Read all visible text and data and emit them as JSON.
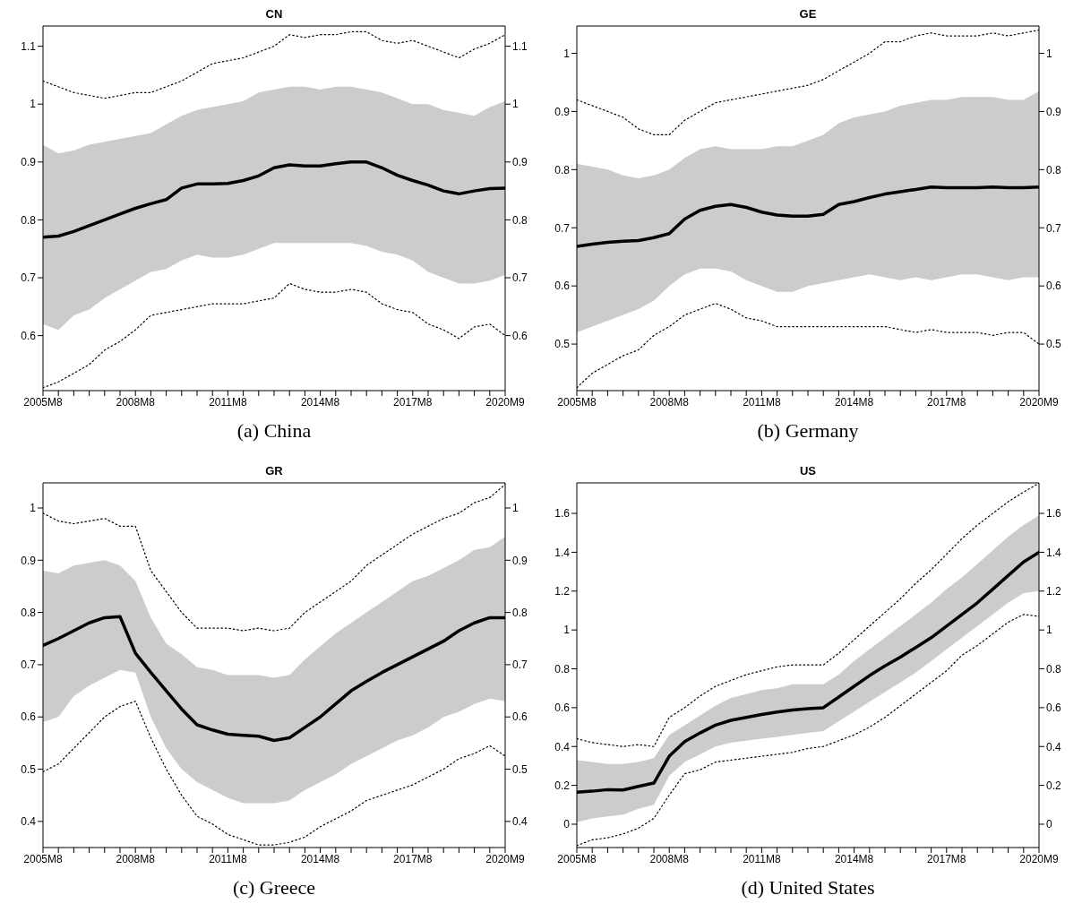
{
  "chart_data": [
    {
      "type": "line",
      "title": "CN",
      "annotations": [
        "(a) China"
      ],
      "marker": "none",
      "line_style": "solid",
      "categories": [
        "2005M8",
        null,
        null,
        null,
        null,
        null,
        "2008M8",
        null,
        null,
        null,
        null,
        null,
        "2011M8",
        null,
        null,
        null,
        null,
        null,
        "2014M8",
        null,
        null,
        null,
        null,
        null,
        "2017M8",
        null,
        null,
        null,
        null,
        null,
        "2020M9"
      ],
      "ylim": [
        0.505,
        1.135
      ],
      "yticks": [
        0.6,
        0.7,
        0.8,
        0.9,
        1,
        1.1
      ],
      "y2lim": [
        0.505,
        1.135
      ],
      "y2ticks": [
        0.6,
        0.7,
        0.8,
        0.9,
        1,
        1.1
      ],
      "series": [
        {
          "color": "#000000",
          "values": [
            0.77,
            0.772,
            0.78,
            0.79,
            0.8,
            0.81,
            0.82,
            0.828,
            0.835,
            0.855,
            0.862,
            0.862,
            0.863,
            0.868,
            0.876,
            0.89,
            0.895,
            0.893,
            0.893,
            0.897,
            0.9,
            0.9,
            0.89,
            0.877,
            0.868,
            0.86,
            0.85,
            0.845,
            0.85,
            0.854,
            0.855
          ],
          "lower": [
            0.62,
            0.61,
            0.635,
            0.645,
            0.665,
            0.68,
            0.695,
            0.71,
            0.715,
            0.73,
            0.74,
            0.735,
            0.735,
            0.74,
            0.75,
            0.76,
            0.76,
            0.76,
            0.76,
            0.76,
            0.76,
            0.755,
            0.745,
            0.74,
            0.73,
            0.71,
            0.7,
            0.69,
            0.69,
            0.695,
            0.705
          ],
          "upper": [
            0.93,
            0.915,
            0.92,
            0.93,
            0.935,
            0.94,
            0.945,
            0.95,
            0.965,
            0.98,
            0.99,
            0.995,
            1.0,
            1.005,
            1.02,
            1.025,
            1.03,
            1.03,
            1.025,
            1.03,
            1.03,
            1.025,
            1.02,
            1.01,
            1.0,
            1.0,
            0.99,
            0.985,
            0.98,
            0.995,
            1.005
          ]
        },
        {
          "color": "#000000",
          "line_style": "dotted",
          "values": [
            1.04,
            1.03,
            1.02,
            1.015,
            1.01,
            1.015,
            1.02,
            1.02,
            1.03,
            1.04,
            1.055,
            1.07,
            1.075,
            1.08,
            1.09,
            1.1,
            1.12,
            1.115,
            1.12,
            1.12,
            1.125,
            1.125,
            1.11,
            1.105,
            1.11,
            1.1,
            1.09,
            1.08,
            1.095,
            1.105,
            1.12
          ]
        },
        {
          "color": "#000000",
          "line_style": "dotted",
          "values": [
            0.51,
            0.52,
            0.535,
            0.55,
            0.575,
            0.59,
            0.61,
            0.635,
            0.64,
            0.645,
            0.65,
            0.655,
            0.655,
            0.655,
            0.66,
            0.665,
            0.69,
            0.68,
            0.675,
            0.675,
            0.68,
            0.675,
            0.655,
            0.645,
            0.64,
            0.62,
            0.61,
            0.595,
            0.615,
            0.62,
            0.6
          ]
        }
      ]
    },
    {
      "type": "line",
      "title": "GE",
      "annotations": [
        "(b) Germany"
      ],
      "marker": "none",
      "line_style": "solid",
      "categories": [
        "2005M8",
        null,
        null,
        null,
        null,
        null,
        "2008M8",
        null,
        null,
        null,
        null,
        null,
        "2011M8",
        null,
        null,
        null,
        null,
        null,
        "2014M8",
        null,
        null,
        null,
        null,
        null,
        "2017M8",
        null,
        null,
        null,
        null,
        null,
        "2020M9"
      ],
      "ylim": [
        0.42,
        1.047
      ],
      "yticks": [
        0.5,
        0.6,
        0.7,
        0.8,
        0.9,
        1
      ],
      "y2lim": [
        0.42,
        1.047
      ],
      "y2ticks": [
        0.5,
        0.6,
        0.7,
        0.8,
        0.9,
        1
      ],
      "series": [
        {
          "color": "#000000",
          "values": [
            0.668,
            0.672,
            0.675,
            0.677,
            0.678,
            0.683,
            0.69,
            0.715,
            0.73,
            0.737,
            0.74,
            0.735,
            0.727,
            0.722,
            0.72,
            0.72,
            0.723,
            0.74,
            0.745,
            0.752,
            0.758,
            0.762,
            0.766,
            0.77,
            0.769,
            0.769,
            0.769,
            0.77,
            0.769,
            0.769,
            0.77
          ],
          "lower": [
            0.52,
            0.53,
            0.54,
            0.55,
            0.56,
            0.575,
            0.6,
            0.62,
            0.63,
            0.63,
            0.625,
            0.61,
            0.6,
            0.59,
            0.59,
            0.6,
            0.605,
            0.61,
            0.615,
            0.62,
            0.615,
            0.61,
            0.615,
            0.61,
            0.615,
            0.62,
            0.62,
            0.615,
            0.61,
            0.615,
            0.615
          ],
          "upper": [
            0.81,
            0.805,
            0.8,
            0.79,
            0.785,
            0.79,
            0.8,
            0.82,
            0.835,
            0.84,
            0.835,
            0.835,
            0.835,
            0.84,
            0.84,
            0.85,
            0.86,
            0.88,
            0.89,
            0.895,
            0.9,
            0.91,
            0.915,
            0.92,
            0.92,
            0.925,
            0.925,
            0.925,
            0.92,
            0.92,
            0.935
          ]
        },
        {
          "color": "#000000",
          "line_style": "dotted",
          "values": [
            0.92,
            0.91,
            0.9,
            0.89,
            0.87,
            0.86,
            0.86,
            0.885,
            0.9,
            0.915,
            0.92,
            0.925,
            0.93,
            0.935,
            0.94,
            0.945,
            0.955,
            0.97,
            0.985,
            1.0,
            1.02,
            1.02,
            1.03,
            1.035,
            1.03,
            1.03,
            1.03,
            1.035,
            1.03,
            1.035,
            1.04
          ]
        },
        {
          "color": "#000000",
          "line_style": "dotted",
          "values": [
            0.425,
            0.45,
            0.465,
            0.48,
            0.49,
            0.515,
            0.53,
            0.55,
            0.56,
            0.57,
            0.56,
            0.545,
            0.54,
            0.53,
            0.53,
            0.53,
            0.53,
            0.53,
            0.53,
            0.53,
            0.53,
            0.525,
            0.52,
            0.525,
            0.52,
            0.52,
            0.52,
            0.515,
            0.52,
            0.52,
            0.5
          ]
        }
      ]
    },
    {
      "type": "line",
      "title": "GR",
      "annotations": [
        "(c) Greece"
      ],
      "marker": "none",
      "line_style": "solid",
      "categories": [
        "2005M8",
        null,
        null,
        null,
        null,
        null,
        "2008M8",
        null,
        null,
        null,
        null,
        null,
        "2011M8",
        null,
        null,
        null,
        null,
        null,
        "2014M8",
        null,
        null,
        null,
        null,
        null,
        "2017M8",
        null,
        null,
        null,
        null,
        null,
        "2020M9"
      ],
      "ylim": [
        0.35,
        1.048
      ],
      "yticks": [
        0.4,
        0.5,
        0.6,
        0.7,
        0.8,
        0.9,
        1
      ],
      "y2lim": [
        0.35,
        1.048
      ],
      "y2ticks": [
        0.4,
        0.5,
        0.6,
        0.7,
        0.8,
        0.9,
        1
      ],
      "series": [
        {
          "color": "#000000",
          "values": [
            0.737,
            0.75,
            0.765,
            0.78,
            0.79,
            0.792,
            0.722,
            0.685,
            0.65,
            0.615,
            0.585,
            0.575,
            0.567,
            0.565,
            0.563,
            0.555,
            0.56,
            0.58,
            0.6,
            0.625,
            0.65,
            0.668,
            0.685,
            0.7,
            0.715,
            0.73,
            0.745,
            0.765,
            0.78,
            0.79,
            0.79
          ],
          "lower": [
            0.59,
            0.6,
            0.64,
            0.66,
            0.675,
            0.69,
            0.685,
            0.6,
            0.54,
            0.5,
            0.475,
            0.46,
            0.445,
            0.435,
            0.435,
            0.435,
            0.44,
            0.46,
            0.475,
            0.49,
            0.51,
            0.525,
            0.54,
            0.555,
            0.565,
            0.58,
            0.6,
            0.61,
            0.625,
            0.635,
            0.63
          ],
          "upper": [
            0.88,
            0.875,
            0.89,
            0.895,
            0.9,
            0.89,
            0.86,
            0.79,
            0.74,
            0.72,
            0.695,
            0.69,
            0.68,
            0.68,
            0.68,
            0.675,
            0.68,
            0.71,
            0.735,
            0.76,
            0.78,
            0.8,
            0.82,
            0.84,
            0.86,
            0.87,
            0.885,
            0.9,
            0.92,
            0.925,
            0.945
          ]
        },
        {
          "color": "#000000",
          "line_style": "dotted",
          "values": [
            0.99,
            0.975,
            0.97,
            0.975,
            0.98,
            0.965,
            0.965,
            0.88,
            0.84,
            0.8,
            0.77,
            0.77,
            0.77,
            0.765,
            0.77,
            0.765,
            0.77,
            0.8,
            0.82,
            0.84,
            0.86,
            0.89,
            0.91,
            0.93,
            0.95,
            0.965,
            0.98,
            0.99,
            1.01,
            1.02,
            1.045
          ]
        },
        {
          "color": "#000000",
          "line_style": "dotted",
          "values": [
            0.495,
            0.51,
            0.54,
            0.57,
            0.6,
            0.62,
            0.63,
            0.56,
            0.5,
            0.45,
            0.41,
            0.395,
            0.375,
            0.365,
            0.355,
            0.355,
            0.36,
            0.37,
            0.39,
            0.405,
            0.42,
            0.44,
            0.45,
            0.46,
            0.47,
            0.485,
            0.5,
            0.52,
            0.53,
            0.545,
            0.525
          ]
        }
      ]
    },
    {
      "type": "line",
      "title": "US",
      "annotations": [
        "(d) United States"
      ],
      "marker": "none",
      "line_style": "solid",
      "categories": [
        "2005M8",
        null,
        null,
        null,
        null,
        null,
        "2008M8",
        null,
        null,
        null,
        null,
        null,
        "2011M8",
        null,
        null,
        null,
        null,
        null,
        "2014M8",
        null,
        null,
        null,
        null,
        null,
        "2017M8",
        null,
        null,
        null,
        null,
        null,
        "2020M9"
      ],
      "ylim": [
        -0.12,
        1.757
      ],
      "yticks": [
        0,
        0.2,
        0.4,
        0.6,
        0.8,
        1,
        1.2,
        1.4,
        1.6
      ],
      "y2lim": [
        -0.12,
        1.757
      ],
      "y2ticks": [
        0,
        0.2,
        0.4,
        0.6,
        0.8,
        1,
        1.2,
        1.4,
        1.6
      ],
      "series": [
        {
          "color": "#000000",
          "values": [
            0.165,
            0.17,
            0.178,
            0.176,
            0.195,
            0.212,
            0.35,
            0.425,
            0.47,
            0.51,
            0.535,
            0.55,
            0.565,
            0.578,
            0.588,
            0.595,
            0.6,
            0.655,
            0.71,
            0.765,
            0.815,
            0.86,
            0.91,
            0.96,
            1.02,
            1.08,
            1.14,
            1.21,
            1.28,
            1.35,
            1.4
          ],
          "lower": [
            0.01,
            0.03,
            0.04,
            0.05,
            0.08,
            0.1,
            0.25,
            0.32,
            0.36,
            0.4,
            0.42,
            0.43,
            0.44,
            0.45,
            0.46,
            0.47,
            0.48,
            0.53,
            0.58,
            0.63,
            0.68,
            0.73,
            0.78,
            0.84,
            0.9,
            0.96,
            1.02,
            1.08,
            1.14,
            1.19,
            1.2
          ],
          "upper": [
            0.33,
            0.32,
            0.31,
            0.31,
            0.32,
            0.34,
            0.46,
            0.51,
            0.56,
            0.61,
            0.65,
            0.67,
            0.69,
            0.7,
            0.72,
            0.72,
            0.72,
            0.77,
            0.84,
            0.9,
            0.96,
            1.02,
            1.08,
            1.14,
            1.21,
            1.27,
            1.34,
            1.41,
            1.48,
            1.54,
            1.59
          ]
        },
        {
          "color": "#000000",
          "line_style": "dotted",
          "values": [
            0.44,
            0.42,
            0.41,
            0.4,
            0.41,
            0.4,
            0.55,
            0.6,
            0.66,
            0.71,
            0.74,
            0.77,
            0.79,
            0.81,
            0.82,
            0.82,
            0.82,
            0.88,
            0.95,
            1.02,
            1.09,
            1.16,
            1.24,
            1.31,
            1.39,
            1.47,
            1.54,
            1.6,
            1.66,
            1.71,
            1.755
          ]
        },
        {
          "color": "#000000",
          "line_style": "dotted",
          "values": [
            -0.11,
            -0.08,
            -0.07,
            -0.05,
            -0.02,
            0.03,
            0.15,
            0.26,
            0.28,
            0.32,
            0.33,
            0.34,
            0.35,
            0.36,
            0.37,
            0.39,
            0.4,
            0.43,
            0.46,
            0.5,
            0.55,
            0.61,
            0.67,
            0.73,
            0.79,
            0.87,
            0.92,
            0.98,
            1.04,
            1.08,
            1.07
          ]
        }
      ]
    }
  ]
}
